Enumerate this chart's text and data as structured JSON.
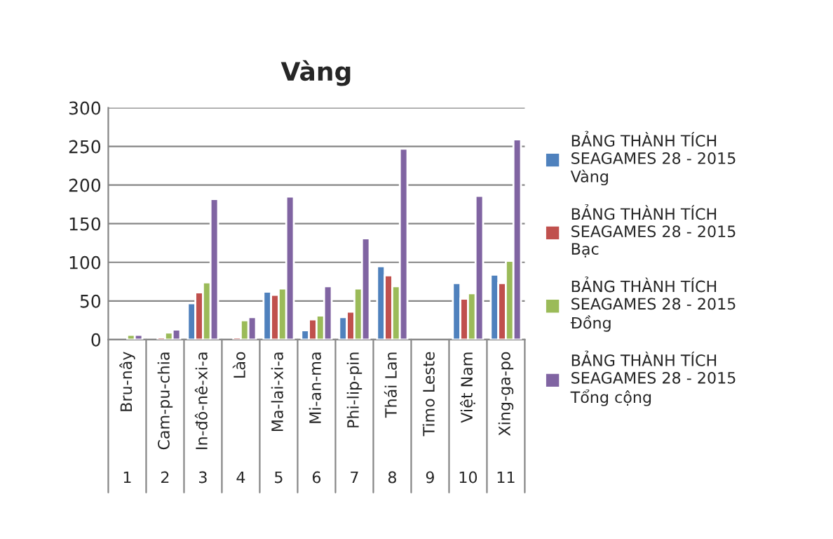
{
  "chart_data": {
    "type": "bar",
    "title": "Vàng",
    "categories": [
      "Bru-nây",
      "Cam-pu-chia",
      "In-đô-nê-xi-a",
      "Lào",
      "Ma-lai-xi-a",
      "Mi-an-ma",
      "Phi-lip-pin",
      "Thái Lan",
      "Timo Leste",
      "Việt Nam",
      "Xing-ga-po"
    ],
    "annotations": [
      "1",
      "2",
      "3",
      "4",
      "5",
      "6",
      "7",
      "8",
      "9",
      "10",
      "11"
    ],
    "series": [
      {
        "name": "BẢNG THÀNH TÍCH SEAGAMES 28 - 2015 Vàng",
        "color": "#4f81bd",
        "values": [
          null,
          null,
          47,
          null,
          62,
          12,
          29,
          95,
          null,
          73,
          84
        ]
      },
      {
        "name": "BẢNG THÀNH TÍCH SEAGAMES 28 - 2015 Bạc",
        "color": "#c0504d",
        "values": [
          null,
          3,
          61,
          3,
          58,
          26,
          36,
          83,
          null,
          53,
          73
        ]
      },
      {
        "name": "BẢNG THÀNH TÍCH SEAGAMES 28 - 2015 Đồng",
        "color": "#9bbb59",
        "values": [
          6,
          9,
          74,
          25,
          66,
          31,
          66,
          69,
          null,
          60,
          102
        ]
      },
      {
        "name": "BẢNG THÀNH TÍCH SEAGAMES 28 - 2015 Tổng cộng",
        "color": "#8064a2",
        "values": [
          6,
          13,
          182,
          29,
          185,
          69,
          131,
          247,
          null,
          186,
          259
        ]
      }
    ],
    "ylim": [
      0,
      300
    ],
    "yticks": [
      0,
      50,
      100,
      150,
      200,
      250,
      300
    ],
    "grid": "y",
    "legend": "right"
  }
}
